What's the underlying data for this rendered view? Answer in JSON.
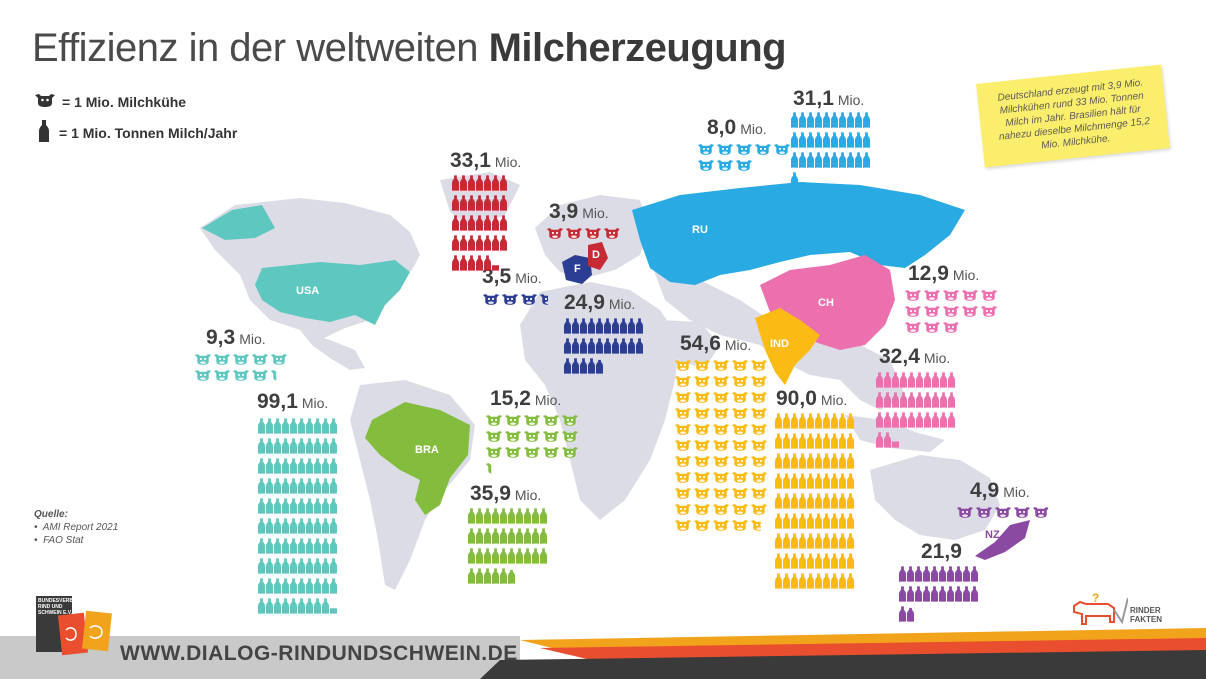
{
  "title": {
    "light": "Effizienz in der weltweiten ",
    "bold": "Milcherzeugung"
  },
  "legend": {
    "cow": "= 1 Mio. Milchkühe",
    "bottle": "= 1 Mio. Tonnen Milch/Jahr"
  },
  "note": "Deutschland erzeugt mit 3,9 Mio. Milchkühen rund 33 Mio. Tonnen Milch im Jahr. Brasilien hält für nahezu dieselbe Milchmenge 15,2 Mio. Milchkühe.",
  "unit": "Mio.",
  "countries": {
    "usa": {
      "label": "USA",
      "cows": "9,3",
      "milk": "99,1",
      "color": "#5ec8c0"
    },
    "bra": {
      "label": "BRA",
      "cows": "15,2",
      "milk": "35,9",
      "color": "#84bd3e"
    },
    "eu": {
      "cows": "",
      "milk": "33,1",
      "color": "#c62a35"
    },
    "d": {
      "label": "D",
      "cows": "3,9",
      "color": "#c62a35"
    },
    "f": {
      "label": "F",
      "cows": "3,5",
      "milk": "24,9",
      "color": "#2c3e94"
    },
    "ru": {
      "label": "RU",
      "cows": "8,0",
      "milk": "31,1",
      "color": "#29aae2"
    },
    "ind": {
      "label": "IND",
      "cows": "54,6",
      "milk": "90,0",
      "color": "#fbbb14"
    },
    "ch": {
      "label": "CH",
      "cows": "12,9",
      "milk": "32,4",
      "color": "#ec6fae"
    },
    "nz": {
      "label": "NZ",
      "cows": "4,9",
      "milk": "21,9",
      "color": "#8b4aa2"
    }
  },
  "source": {
    "title": "Quelle:",
    "items": [
      "AMI Report 2021",
      "FAO Stat"
    ]
  },
  "footer": {
    "url": "WWW.DIALOG-RINDUNDSCHWEIN.DE",
    "logo_text": "BUNDESVERBAND RIND UND SCHWEIN E.V.",
    "brand": "RINDER FAKTEN"
  }
}
